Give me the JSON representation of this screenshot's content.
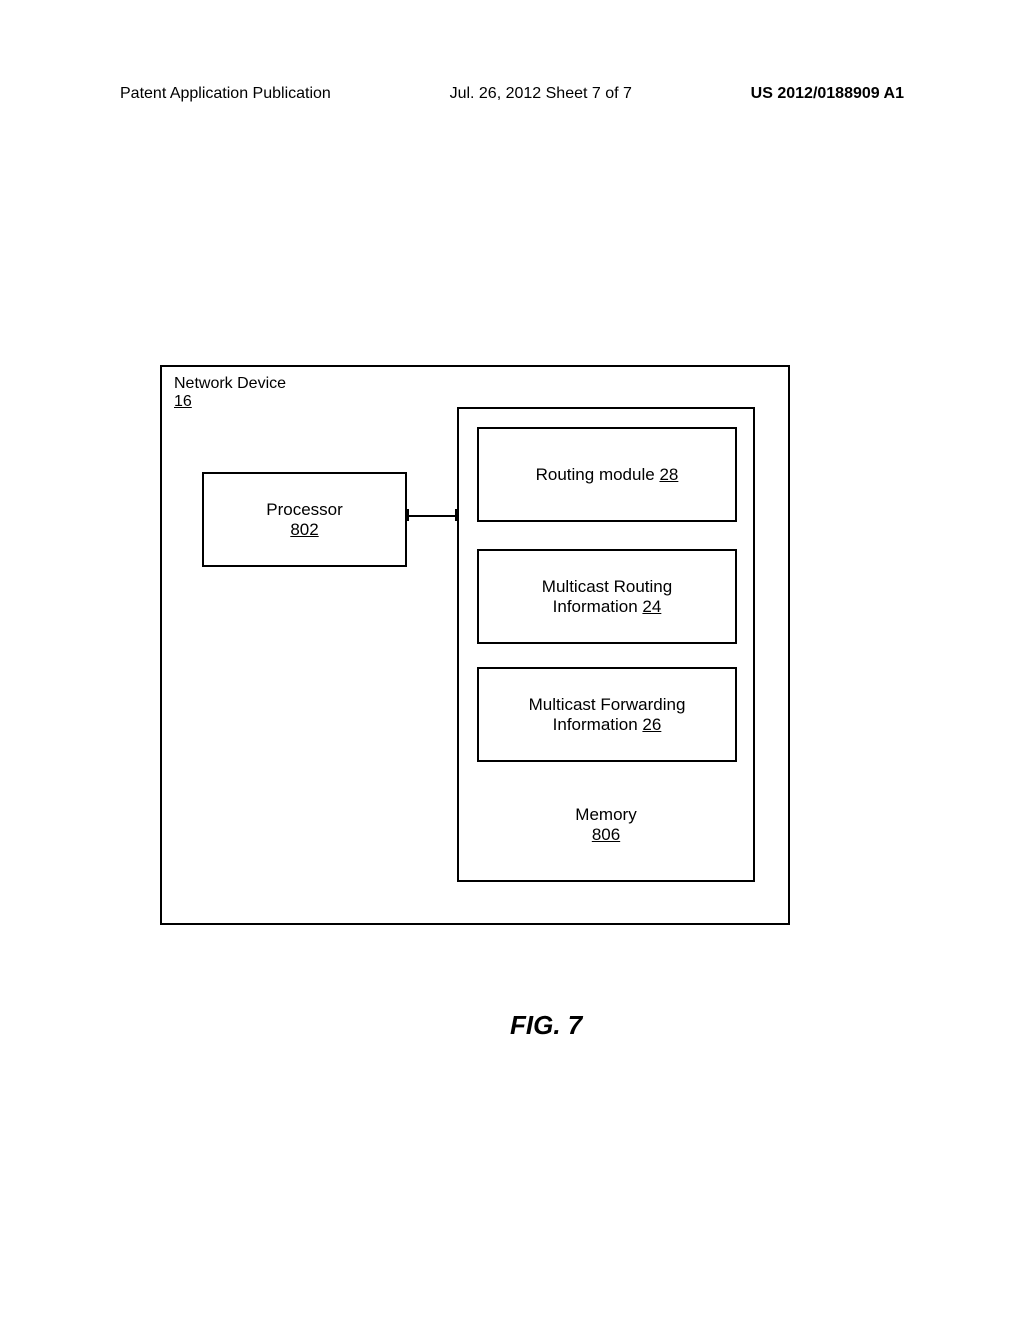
{
  "header": {
    "left": "Patent Application Publication",
    "center": "Jul. 26, 2012  Sheet 7 of 7",
    "right": "US 2012/0188909 A1"
  },
  "diagram": {
    "type": "block-diagram",
    "outer": {
      "title": "Network Device",
      "ref": "16"
    },
    "processor": {
      "title": "Processor",
      "ref": "802"
    },
    "memory": {
      "title": "Memory",
      "ref": "806",
      "blocks": {
        "routing": {
          "label": "Routing module",
          "ref": "28"
        },
        "mcast_routing": {
          "line1": "Multicast Routing",
          "line2_prefix": "Information",
          "ref": "24"
        },
        "mcast_forward": {
          "line1": "Multicast Forwarding",
          "line2_prefix": "Information",
          "ref": "26"
        }
      }
    }
  },
  "figure_label": "FIG. 7",
  "style": {
    "stroke_color": "#000000",
    "background_color": "#ffffff",
    "font_family": "Arial, sans-serif",
    "header_fontsize": 16,
    "box_text_fontsize": 17,
    "figure_label_fontsize": 26
  }
}
